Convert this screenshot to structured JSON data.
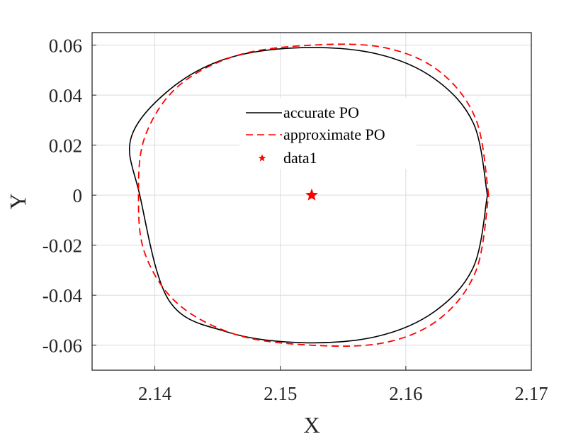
{
  "chart_data": {
    "type": "line",
    "xlabel": "X",
    "ylabel": "Y",
    "xlim": [
      2.135,
      2.17
    ],
    "ylim": [
      -0.07,
      0.065
    ],
    "xticks": [
      2.14,
      2.15,
      2.16,
      2.17
    ],
    "xtick_labels": [
      "2.14",
      "2.15",
      "2.16",
      "2.17"
    ],
    "yticks": [
      -0.06,
      -0.04,
      -0.02,
      0,
      0.02,
      0.04,
      0.06
    ],
    "ytick_labels": [
      "-0.06",
      "-0.04",
      "-0.02",
      "0",
      "0.02",
      "0.04",
      "0.06"
    ],
    "grid": true,
    "legend_position": "upper-center",
    "series": [
      {
        "name": "accurate PO",
        "style": "solid",
        "color": "#000000",
        "x": [
          2.1665,
          2.1654,
          2.1623,
          2.1577,
          2.1517,
          2.1457,
          2.1411,
          2.1381,
          2.1388,
          2.1411,
          2.1457,
          2.1517,
          2.1577,
          2.1623,
          2.1654,
          2.1665
        ],
        "y": [
          0,
          0.0286,
          0.0465,
          0.0565,
          0.059,
          0.0546,
          0.0419,
          0.0228,
          0,
          -0.0419,
          -0.0546,
          -0.059,
          -0.0565,
          -0.0465,
          -0.0286,
          0
        ]
      },
      {
        "name": "approximate PO",
        "style": "dashed",
        "color": "#ff0000",
        "x": [
          2.1666,
          2.1656,
          2.1627,
          2.1583,
          2.1525,
          2.1465,
          2.1418,
          2.1392,
          2.1387,
          2.1392,
          2.1418,
          2.1465,
          2.1525,
          2.1583,
          2.1627,
          2.1656,
          2.1666
        ],
        "y": [
          0,
          0.0301,
          0.0494,
          0.059,
          0.06,
          0.0558,
          0.0433,
          0.0232,
          0,
          -0.0232,
          -0.0433,
          -0.0558,
          -0.06,
          -0.059,
          -0.0494,
          -0.0301,
          0
        ]
      },
      {
        "name": "data1",
        "style": "marker",
        "marker": "star",
        "color": "#ff0000",
        "x": [
          2.1525
        ],
        "y": [
          0
        ]
      }
    ]
  }
}
